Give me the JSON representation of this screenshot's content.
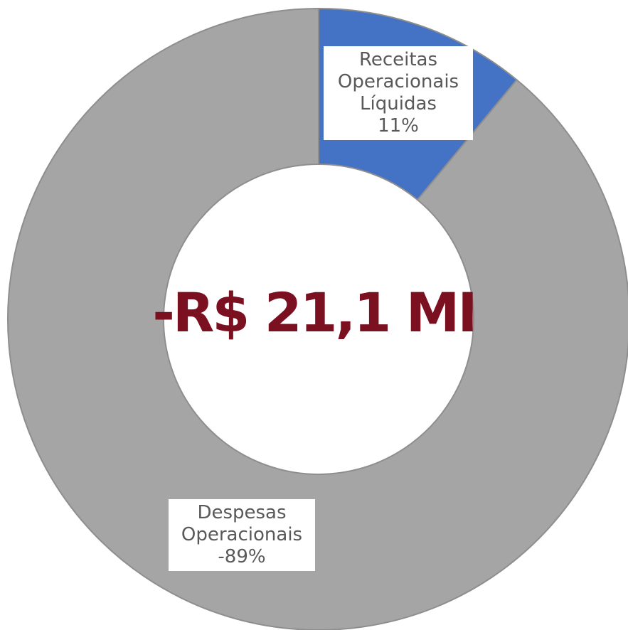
{
  "chart_data": {
    "type": "donut",
    "categories": [
      "Receitas Operacionais Líquidas",
      "Despesas Operacionais"
    ],
    "values": [
      11,
      -89
    ],
    "value_labels": [
      "11%",
      "-89%"
    ],
    "colors": [
      "#4472c4",
      "#a5a5a5"
    ],
    "center_label": "-R$ 21,1 MI"
  }
}
